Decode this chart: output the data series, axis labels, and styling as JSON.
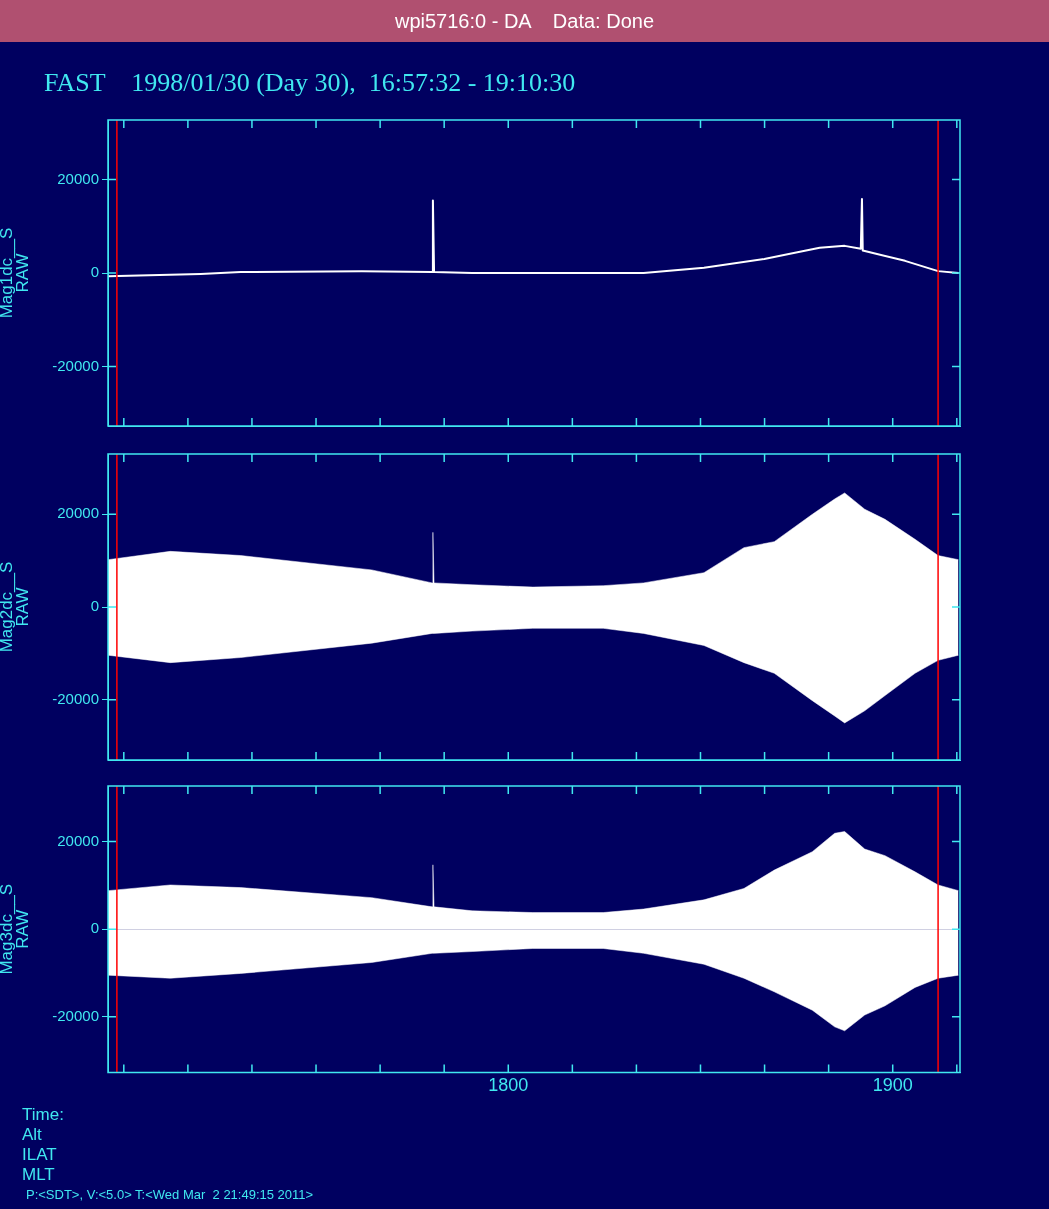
{
  "chart_data": [
    {
      "type": "line",
      "title": "FAST    1998/01/30 (Day 30),  16:57:32 - 19:10:30",
      "annotations": [
        "wpi5716:0 - DA    Data: Done"
      ],
      "ylabel": "Mag1dc__S\nRAW",
      "legend": false,
      "tick_labels": "y",
      "xlim": [
        1695.89,
        1917.5
      ],
      "ylim": [
        -32700,
        32700
      ],
      "yticks": [
        -20000,
        0,
        20000
      ],
      "xticks": [
        {
          "value": 1700,
          "label": null
        },
        {
          "value": 1716.67,
          "label": null
        },
        {
          "value": 1733.33,
          "label": null
        },
        {
          "value": 1750,
          "label": null
        },
        {
          "value": 1766.67,
          "label": null
        },
        {
          "value": 1783.33,
          "label": null
        },
        {
          "value": 1800,
          "label": null
        },
        {
          "value": 1816.67,
          "label": null
        },
        {
          "value": 1833.33,
          "label": null
        },
        {
          "value": 1850,
          "label": null
        },
        {
          "value": 1866.67,
          "label": null
        },
        {
          "value": 1883.33,
          "label": null
        },
        {
          "value": 1900,
          "label": null
        },
        {
          "value": 1916.67,
          "label": null
        }
      ],
      "ref_lines": [
        {
          "axis": "x",
          "value": 1698.2,
          "color": "#ff0000"
        },
        {
          "axis": "x",
          "value": 1911.8,
          "color": "#ff0000"
        }
      ],
      "series": [
        {
          "color": "#ffffff",
          "x": [
            1695.9,
            1720.0,
            1730.4,
            1761.9,
            1780.2,
            1780.4,
            1780.7,
            1790.6,
            1835.2,
            1850.9,
            1866.6,
            1881.0,
            1887.5,
            1891.7,
            1892.0,
            1892.2,
            1903.2,
            1911.8,
            1917.1
          ],
          "values": [
            -700,
            -200,
            200,
            400,
            200,
            15500,
            200,
            0,
            0,
            1100,
            3000,
            5400,
            5800,
            5200,
            15800,
            4800,
            2600,
            400,
            0
          ]
        }
      ]
    },
    {
      "type": "area",
      "ylabel": "Mag2dc__S\nRAW",
      "legend": false,
      "tick_labels": "y",
      "xlim": [
        1695.89,
        1917.5
      ],
      "ylim": [
        -33000,
        33000
      ],
      "yticks": [
        -20000,
        0,
        20000
      ],
      "xticks": [
        {
          "value": 1700,
          "label": null
        },
        {
          "value": 1716.67,
          "label": null
        },
        {
          "value": 1733.33,
          "label": null
        },
        {
          "value": 1750,
          "label": null
        },
        {
          "value": 1766.67,
          "label": null
        },
        {
          "value": 1783.33,
          "label": null
        },
        {
          "value": 1800,
          "label": null
        },
        {
          "value": 1816.67,
          "label": null
        },
        {
          "value": 1833.33,
          "label": null
        },
        {
          "value": 1850,
          "label": null
        },
        {
          "value": 1866.67,
          "label": null
        },
        {
          "value": 1883.33,
          "label": null
        },
        {
          "value": 1900,
          "label": null
        },
        {
          "value": 1916.67,
          "label": null
        }
      ],
      "ref_lines": [
        {
          "axis": "x",
          "value": 1698.2,
          "color": "#ff0000"
        },
        {
          "axis": "x",
          "value": 1911.8,
          "color": "#ff0000"
        }
      ],
      "x": [
        1695.9,
        1712.1,
        1730.4,
        1764.5,
        1780.2,
        1780.4,
        1780.7,
        1790.6,
        1806.4,
        1824.7,
        1835.2,
        1850.9,
        1861.3,
        1869.2,
        1879.1,
        1884.9,
        1887.5,
        1892.7,
        1898.0,
        1905.8,
        1911.8,
        1917.1
      ],
      "series": [
        {
          "color": "#ffffff",
          "values": [
            10200,
            12000,
            11100,
            8000,
            5200,
            16100,
            5200,
            4800,
            4300,
            4600,
            5200,
            7400,
            12800,
            14100,
            20000,
            23300,
            24600,
            21100,
            18900,
            14600,
            11100,
            10200
          ]
        },
        {
          "color": "#ffffff",
          "values": [
            -10400,
            -12000,
            -10900,
            -7800,
            -5700,
            -5700,
            -5700,
            -5200,
            -4600,
            -4600,
            -5700,
            -8300,
            -12000,
            -14300,
            -20200,
            -23500,
            -25000,
            -22400,
            -19100,
            -14300,
            -11500,
            -10400
          ]
        }
      ]
    },
    {
      "type": "area",
      "ylabel": "Mag3dc__S\nRAW",
      "legend": false,
      "annotations": [
        "Time:",
        "Alt",
        "ILAT",
        "MLT",
        "P:<SDT>, V:<5.0> T:<Wed Mar  2 21:49:15 2011>"
      ],
      "xlim": [
        1695.89,
        1917.5
      ],
      "ylim": [
        -32700,
        32700
      ],
      "yticks": [
        -20000,
        0,
        20000
      ],
      "xticks": [
        {
          "value": 1700,
          "label": null
        },
        {
          "value": 1716.67,
          "label": null
        },
        {
          "value": 1733.33,
          "label": null
        },
        {
          "value": 1750,
          "label": null
        },
        {
          "value": 1766.67,
          "label": null
        },
        {
          "value": 1783.33,
          "label": null
        },
        1800,
        {
          "value": 1816.67,
          "label": null
        },
        {
          "value": 1833.33,
          "label": null
        },
        {
          "value": 1850,
          "label": null
        },
        {
          "value": 1866.67,
          "label": null
        },
        {
          "value": 1883.33,
          "label": null
        },
        1900,
        {
          "value": 1916.67,
          "label": null
        }
      ],
      "ref_lines": [
        {
          "axis": "x",
          "value": 1698.2,
          "color": "#ff0000"
        },
        {
          "axis": "x",
          "value": 1911.8,
          "color": "#ff0000"
        }
      ],
      "x": [
        1695.9,
        1712.1,
        1730.4,
        1764.5,
        1780.2,
        1780.4,
        1780.7,
        1790.6,
        1806.4,
        1824.7,
        1835.2,
        1850.9,
        1861.3,
        1869.2,
        1879.1,
        1884.9,
        1887.5,
        1892.7,
        1898.0,
        1905.8,
        1911.8,
        1917.1
      ],
      "series": [
        {
          "color": "#ffffff",
          "values": [
            8800,
            10100,
            9500,
            7200,
            5100,
            14700,
            5100,
            4200,
            3800,
            3800,
            4600,
            6700,
            9300,
            13500,
            17700,
            21900,
            22300,
            18300,
            16800,
            13100,
            10100,
            8800
          ]
        },
        {
          "color": "#ffffff",
          "values": [
            -10500,
            -11200,
            -10100,
            -7600,
            -5500,
            -5500,
            -5500,
            -5100,
            -4400,
            -4400,
            -5500,
            -8000,
            -11200,
            -14300,
            -18500,
            -22300,
            -23200,
            -19600,
            -17500,
            -13300,
            -11200,
            -10500
          ]
        }
      ]
    }
  ]
}
